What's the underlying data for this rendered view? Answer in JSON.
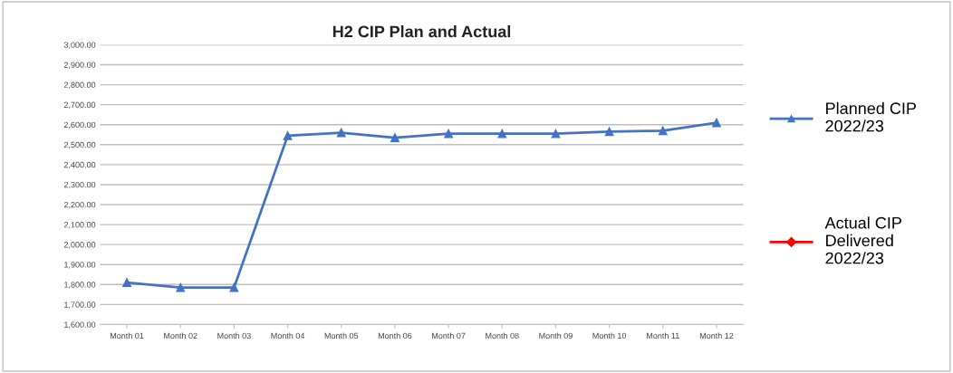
{
  "chart_data": {
    "type": "line",
    "title": "H2 CIP Plan and Actual",
    "categories": [
      "Month 01",
      "Month 02",
      "Month 03",
      "Month 04",
      "Month 05",
      "Month 06",
      "Month 07",
      "Month 08",
      "Month 09",
      "Month 10",
      "Month 11",
      "Month 12"
    ],
    "series": [
      {
        "name": "Planned CIP\n2022/23",
        "color": "#4472c4",
        "marker": "triangle",
        "values": [
          1810,
          1785,
          1785,
          2545,
          2560,
          2535,
          2555,
          2555,
          2555,
          2565,
          2570,
          2610
        ]
      },
      {
        "name": "Actual CIP\nDelivered\n2022/23",
        "color": "#ff0000",
        "marker": "diamond",
        "values": [
          null,
          null,
          null,
          null,
          null,
          null,
          null,
          null,
          null,
          null,
          null,
          null
        ]
      }
    ],
    "ylim": [
      1600,
      3000
    ],
    "yticks": [
      {
        "value": 1600,
        "label": "1,600.00"
      },
      {
        "value": 1700,
        "label": "1,700.00"
      },
      {
        "value": 1800,
        "label": "1,800.00"
      },
      {
        "value": 1900,
        "label": "1,900.00"
      },
      {
        "value": 2000,
        "label": "2,000.00"
      },
      {
        "value": 2100,
        "label": "2,100.00"
      },
      {
        "value": 2200,
        "label": "2,200.00"
      },
      {
        "value": 2300,
        "label": "2,300.00"
      },
      {
        "value": 2400,
        "label": "2,400.00"
      },
      {
        "value": 2500,
        "label": "2,500.00"
      },
      {
        "value": 2600,
        "label": "2,600.00"
      },
      {
        "value": 2700,
        "label": "2,700.00"
      },
      {
        "value": 2800,
        "label": "2,800.00"
      },
      {
        "value": 2900,
        "label": "2,900.00"
      },
      {
        "value": 3000,
        "label": "3,000.00"
      }
    ],
    "grid": "y",
    "legend": "right"
  }
}
